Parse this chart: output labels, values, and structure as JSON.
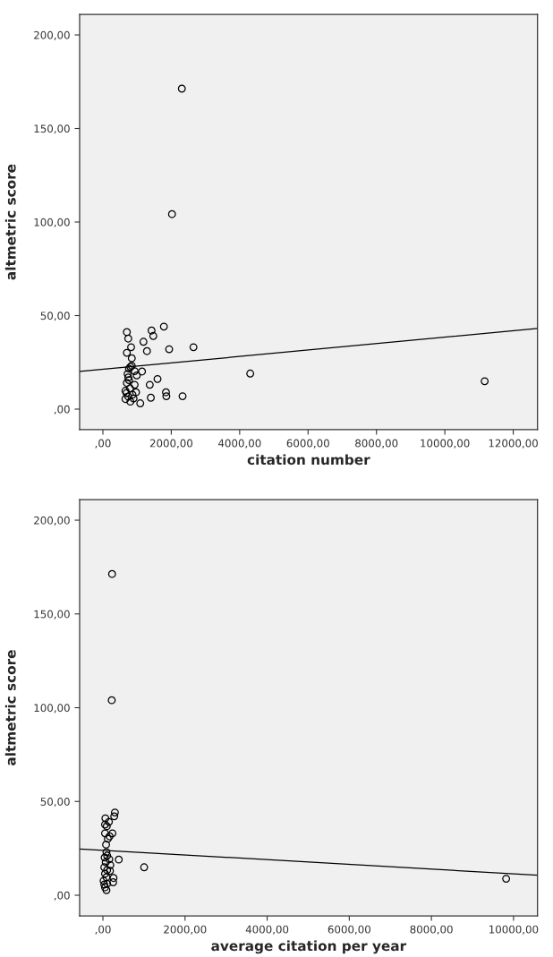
{
  "chart_data": [
    {
      "type": "scatter",
      "xlabel": "citation number",
      "ylabel": "altmetric score",
      "xlim": [
        -680,
        12710
      ],
      "ylim": [
        -11,
        211
      ],
      "xticks": [
        {
          "value": 0,
          "label": ",00"
        },
        {
          "value": 2000,
          "label": "2000,00"
        },
        {
          "value": 4000,
          "label": "4000,00"
        },
        {
          "value": 6000,
          "label": "6000,00"
        },
        {
          "value": 8000,
          "label": "8000,00"
        },
        {
          "value": 10000,
          "label": "10000,00"
        },
        {
          "value": 12000,
          "label": "12000,00"
        }
      ],
      "yticks": [
        {
          "value": 0,
          "label": ",00"
        },
        {
          "value": 50,
          "label": "50,00"
        },
        {
          "value": 100,
          "label": "100,00"
        },
        {
          "value": 150,
          "label": "150,00"
        },
        {
          "value": 200,
          "label": "200,00"
        }
      ],
      "grid": false,
      "marker": "circle",
      "series": [
        {
          "color": "#000000",
          "x": [
            2309,
            2021,
            701,
            742,
            825,
            845,
            701,
            1423,
            1784,
            1474,
            1186,
            1289,
            1938,
            2649,
            4309,
            11165,
            1144,
            1598,
            1371,
            1402,
            1845,
            1856,
            2330,
            1093,
            804,
            845,
            763,
            928,
            990,
            722,
            742,
            701,
            928,
            660,
            794,
            969,
            866,
            660,
            804,
            742,
            897,
            691,
            763
          ],
          "values": [
            171.3,
            104.2,
            41.2,
            37.7,
            33.1,
            27.2,
            30.1,
            42.0,
            44.1,
            39.1,
            36.0,
            31.0,
            32.0,
            33.1,
            19.0,
            14.9,
            20.1,
            16.1,
            13.0,
            6.1,
            9.0,
            6.9,
            6.9,
            3.1,
            22.6,
            23.2,
            21.6,
            20.3,
            18.0,
            18.8,
            16.9,
            14.0,
            13.0,
            9.8,
            11.1,
            9.0,
            7.7,
            5.4,
            4.0,
            6.7,
            5.7,
            8.6,
            15.5
          ]
        },
        {
          "type": "line",
          "color": "#000000",
          "line_style": "solid",
          "marker": "none",
          "x": [
            -680,
            12710
          ],
          "values": [
            20.1,
            43.1
          ]
        }
      ]
    },
    {
      "type": "scatter",
      "xlabel": "average citation per year",
      "ylabel": "altmetric score",
      "xlim": [
        -567,
        10584
      ],
      "ylim": [
        -11,
        211
      ],
      "xticks": [
        {
          "value": 0,
          "label": ",00"
        },
        {
          "value": 2000,
          "label": "2000,00"
        },
        {
          "value": 4000,
          "label": "4000,00"
        },
        {
          "value": 6000,
          "label": "6000,00"
        },
        {
          "value": 8000,
          "label": "8000,00"
        },
        {
          "value": 10000,
          "label": "10000,00"
        }
      ],
      "yticks": [
        {
          "value": 0,
          "label": ",00"
        },
        {
          "value": 50,
          "label": "50,00"
        },
        {
          "value": 100,
          "label": "100,00"
        },
        {
          "value": 150,
          "label": "150,00"
        },
        {
          "value": 200,
          "label": "200,00"
        }
      ],
      "grid": false,
      "marker": "circle",
      "series": [
        {
          "color": "#000000",
          "x": [
            223,
            215,
            9820,
            1004,
            386,
            292,
            275,
            60,
            146,
            52,
            94,
            232,
            52,
            163,
            120,
            77,
            86,
            103,
            43,
            155,
            69,
            180,
            34,
            103,
            172,
            52,
            258,
            86,
            249,
            17,
            103,
            52,
            86,
            34
          ],
          "values": [
            171.3,
            104.0,
            8.8,
            14.9,
            19.0,
            44.1,
            42.1,
            41.0,
            39.1,
            37.7,
            36.8,
            33.0,
            33.0,
            31.4,
            30.1,
            27.0,
            23.0,
            21.1,
            20.1,
            19.2,
            17.6,
            16.1,
            14.9,
            13.4,
            13.0,
            11.5,
            9.2,
            9.6,
            6.9,
            7.7,
            6.1,
            4.2,
            2.7,
            5.7
          ]
        },
        {
          "type": "line",
          "color": "#000000",
          "line_style": "solid",
          "marker": "none",
          "x": [
            -567,
            10584
          ],
          "values": [
            24.7,
            10.7
          ]
        }
      ]
    }
  ]
}
